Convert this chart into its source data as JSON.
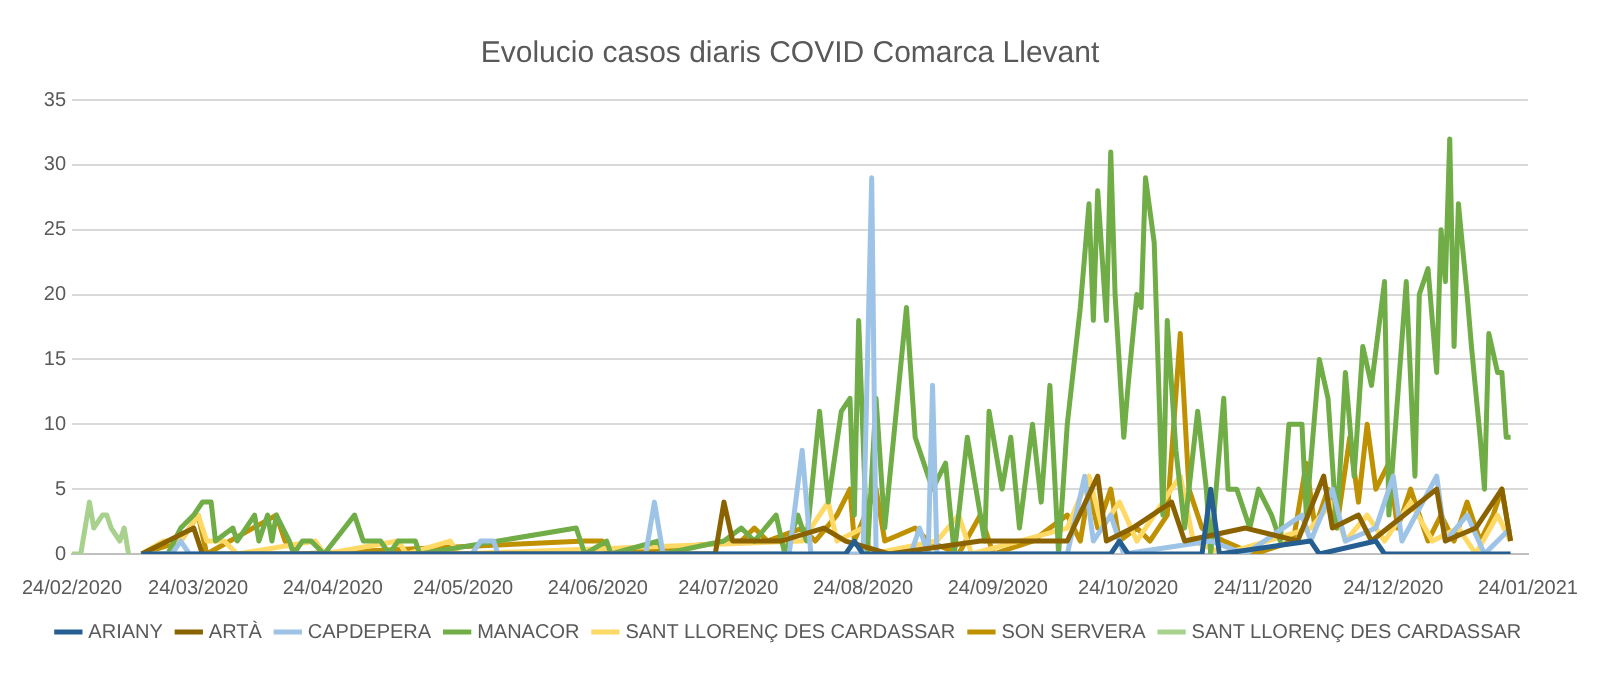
{
  "chart_data": {
    "type": "line",
    "title": "Evolucio casos diaris COVID Comarca Llevant",
    "xlim": [
      "2020-02-24",
      "2021-01-24"
    ],
    "xticks": [
      {
        "value": "2020-02-24",
        "label": "24/02/2020"
      },
      {
        "value": "2020-03-24",
        "label": "24/03/2020"
      },
      {
        "value": "2020-04-24",
        "label": "24/04/2020"
      },
      {
        "value": "2020-05-24",
        "label": "24/05/2020"
      },
      {
        "value": "2020-06-24",
        "label": "24/06/2020"
      },
      {
        "value": "2020-07-24",
        "label": "24/07/2020"
      },
      {
        "value": "2020-08-24",
        "label": "24/08/2020"
      },
      {
        "value": "2020-09-24",
        "label": "24/09/2020"
      },
      {
        "value": "2020-10-24",
        "label": "24/10/2020"
      },
      {
        "value": "2020-11-24",
        "label": "24/11/2020"
      },
      {
        "value": "2020-12-24",
        "label": "24/12/2020"
      },
      {
        "value": "2021-01-24",
        "label": "24/01/2021"
      }
    ],
    "ylim": [
      0,
      35
    ],
    "yticks": [
      0,
      5,
      10,
      15,
      20,
      25,
      30,
      35
    ],
    "grid": "y",
    "legend": "bottom",
    "marker": "none",
    "series": [
      {
        "name": "ARIANY",
        "color": "#255e91",
        "x": [
          "2020-03-11",
          "2020-08-20",
          "2020-08-22",
          "2020-08-24",
          "2020-10-20",
          "2020-10-22",
          "2020-10-24",
          "2020-11-10",
          "2020-11-12",
          "2020-11-14",
          "2020-12-05",
          "2020-12-07",
          "2020-12-20",
          "2020-12-22",
          "2021-01-20"
        ],
        "values": [
          0,
          0,
          1,
          0,
          0,
          1,
          0,
          0,
          5,
          0,
          1,
          0,
          1,
          0,
          0
        ]
      },
      {
        "name": "ARTÀ",
        "color": "#8a6200",
        "x": [
          "2020-03-11",
          "2020-03-23",
          "2020-03-25",
          "2020-07-21",
          "2020-07-23",
          "2020-07-25",
          "2020-08-05",
          "2020-08-15",
          "2020-08-20",
          "2020-08-30",
          "2020-09-20",
          "2020-10-10",
          "2020-10-17",
          "2020-10-19",
          "2020-10-25",
          "2020-11-03",
          "2020-11-06",
          "2020-11-20",
          "2020-12-02",
          "2020-12-08",
          "2020-12-10",
          "2020-12-16",
          "2020-12-19",
          "2021-01-03",
          "2021-01-05",
          "2021-01-12",
          "2021-01-18",
          "2021-01-20"
        ],
        "values": [
          0,
          2,
          0,
          0,
          4,
          1,
          1,
          2,
          1,
          0,
          1,
          1,
          6,
          1,
          2,
          4,
          1,
          2,
          1,
          6,
          2,
          3,
          1,
          5,
          1,
          2,
          5,
          1
        ]
      },
      {
        "name": "CAPDEPERA",
        "color": "#9dc3e6",
        "x": [
          "2020-03-11",
          "2020-03-18",
          "2020-03-20",
          "2020-03-22",
          "2020-05-26",
          "2020-05-28",
          "2020-05-31",
          "2020-06-01",
          "2020-07-05",
          "2020-07-07",
          "2020-07-09",
          "2020-08-07",
          "2020-08-10",
          "2020-08-12",
          "2020-08-24",
          "2020-08-26",
          "2020-08-27",
          "2020-09-04",
          "2020-09-06",
          "2020-09-08",
          "2020-09-09",
          "2020-09-10",
          "2020-10-10",
          "2020-10-14",
          "2020-10-16",
          "2020-10-20",
          "2020-10-23",
          "2020-11-12",
          "2020-11-20",
          "2020-12-03",
          "2020-12-05",
          "2020-12-10",
          "2020-12-13",
          "2020-12-20",
          "2020-12-24",
          "2020-12-26",
          "2021-01-03",
          "2021-01-05",
          "2021-01-10",
          "2021-01-14",
          "2021-01-20"
        ],
        "values": [
          0,
          0,
          1,
          0,
          0,
          1,
          1,
          0,
          0,
          4,
          0,
          0,
          8,
          0,
          0,
          29,
          0,
          0,
          2,
          0,
          13,
          0,
          0,
          6,
          1,
          3,
          0,
          1,
          0,
          3,
          1,
          5,
          1,
          2,
          6,
          1,
          6,
          1,
          3,
          0,
          2
        ]
      },
      {
        "name": "MANACOR",
        "color": "#70ad47",
        "x": [
          "2020-03-11",
          "2020-03-17",
          "2020-03-20",
          "2020-03-23",
          "2020-03-25",
          "2020-03-27",
          "2020-03-28",
          "2020-04-01",
          "2020-04-02",
          "2020-04-06",
          "2020-04-07",
          "2020-04-09",
          "2020-04-10",
          "2020-04-11",
          "2020-04-14",
          "2020-04-15",
          "2020-04-17",
          "2020-04-19",
          "2020-04-22",
          "2020-04-29",
          "2020-05-01",
          "2020-05-05",
          "2020-05-07",
          "2020-05-09",
          "2020-05-13",
          "2020-05-14",
          "2020-06-19",
          "2020-06-21",
          "2020-06-26",
          "2020-06-27",
          "2020-07-08",
          "2020-07-09",
          "2020-07-23",
          "2020-07-27",
          "2020-07-30",
          "2020-08-04",
          "2020-08-06",
          "2020-08-09",
          "2020-08-11",
          "2020-08-14",
          "2020-08-16",
          "2020-08-19",
          "2020-08-21",
          "2020-08-22",
          "2020-08-23",
          "2020-08-25",
          "2020-08-27",
          "2020-08-29",
          "2020-09-03",
          "2020-09-05",
          "2020-09-09",
          "2020-09-12",
          "2020-09-14",
          "2020-09-17",
          "2020-09-21",
          "2020-09-22",
          "2020-09-25",
          "2020-09-27",
          "2020-09-29",
          "2020-10-02",
          "2020-10-04",
          "2020-10-06",
          "2020-10-08",
          "2020-10-10",
          "2020-10-13",
          "2020-10-15",
          "2020-10-16",
          "2020-10-17",
          "2020-10-19",
          "2020-10-20",
          "2020-10-21",
          "2020-10-23",
          "2020-10-24",
          "2020-10-26",
          "2020-10-27",
          "2020-10-28",
          "2020-10-30",
          "2020-11-01",
          "2020-11-02",
          "2020-11-04",
          "2020-11-06",
          "2020-11-09",
          "2020-11-11",
          "2020-11-12",
          "2020-11-15",
          "2020-11-16",
          "2020-11-18",
          "2020-11-21",
          "2020-11-23",
          "2020-11-26",
          "2020-11-28",
          "2020-11-30",
          "2020-12-03",
          "2020-12-04",
          "2020-12-07",
          "2020-12-09",
          "2020-12-11",
          "2020-12-13",
          "2020-12-15",
          "2020-12-17",
          "2020-12-19",
          "2020-12-22",
          "2020-12-23",
          "2020-12-27",
          "2020-12-29",
          "2020-12-30",
          "2021-01-01",
          "2021-01-03",
          "2021-01-04",
          "2021-01-05",
          "2021-01-06",
          "2021-01-07",
          "2021-01-08",
          "2021-01-10",
          "2021-01-11",
          "2021-01-13",
          "2021-01-14",
          "2021-01-15",
          "2021-01-17",
          "2021-01-18",
          "2021-01-19",
          "2021-01-20"
        ],
        "values": [
          0,
          0,
          2,
          3,
          4,
          4,
          1,
          2,
          1,
          3,
          1,
          3,
          1,
          3,
          1,
          0,
          1,
          1,
          0,
          3,
          1,
          1,
          0,
          1,
          1,
          0,
          2,
          0,
          1,
          0,
          1,
          0,
          1,
          2,
          1,
          3,
          0,
          3,
          1,
          11,
          4,
          11,
          12,
          3,
          18,
          0,
          12,
          2,
          19,
          9,
          5,
          7,
          0,
          9,
          1,
          11,
          5,
          9,
          2,
          10,
          4,
          13,
          0,
          10,
          19,
          27,
          18,
          28,
          18,
          31,
          20,
          9,
          13,
          20,
          19,
          29,
          24,
          3,
          18,
          8,
          2,
          11,
          5,
          0,
          12,
          5,
          5,
          2,
          5,
          3,
          1,
          10,
          10,
          3,
          15,
          12,
          2,
          14,
          6,
          16,
          13,
          21,
          3,
          21,
          6,
          20,
          22,
          14,
          25,
          21,
          32,
          16,
          27,
          20,
          16,
          9,
          5,
          17,
          14,
          14,
          9,
          9
        ]
      },
      {
        "name": "SANT LLORENÇ DES CARDASSAR",
        "color": "#ffd966",
        "x": [
          "2020-03-11",
          "2020-03-16",
          "2020-03-20",
          "2020-03-24",
          "2020-03-26",
          "2020-03-30",
          "2020-04-02",
          "2020-04-20",
          "2020-04-22",
          "2020-05-09",
          "2020-05-11",
          "2020-05-21",
          "2020-05-23",
          "2020-08-10",
          "2020-08-16",
          "2020-08-18",
          "2020-08-24",
          "2020-08-26",
          "2020-09-10",
          "2020-09-15",
          "2020-09-18",
          "2020-10-10",
          "2020-10-15",
          "2020-10-18",
          "2020-10-22",
          "2020-10-26",
          "2020-11-05",
          "2020-11-08",
          "2020-11-15",
          "2020-11-25",
          "2020-12-05",
          "2020-12-10",
          "2020-12-13",
          "2020-12-18",
          "2020-12-22",
          "2020-12-28",
          "2021-01-02",
          "2021-01-08",
          "2021-01-12",
          "2021-01-17",
          "2021-01-20"
        ],
        "values": [
          0,
          1,
          1,
          3,
          1,
          1,
          0,
          1,
          0,
          1,
          0,
          1,
          0,
          1,
          4,
          1,
          2,
          0,
          1,
          3,
          0,
          2,
          6,
          2,
          4,
          1,
          6,
          1,
          0,
          1,
          2,
          4,
          1,
          3,
          1,
          4,
          1,
          2,
          0,
          3,
          1
        ]
      },
      {
        "name": "SON SERVERA",
        "color": "#bf9000",
        "x": [
          "2020-03-11",
          "2020-03-20",
          "2020-03-24",
          "2020-03-26",
          "2020-04-11",
          "2020-04-13",
          "2020-04-16",
          "2020-06-21",
          "2020-06-25",
          "2020-06-26",
          "2020-07-27",
          "2020-07-30",
          "2020-08-02",
          "2020-08-10",
          "2020-08-13",
          "2020-08-18",
          "2020-08-21",
          "2020-08-22",
          "2020-08-27",
          "2020-08-29",
          "2020-09-05",
          "2020-09-08",
          "2020-09-15",
          "2020-09-20",
          "2020-09-23",
          "2020-10-02",
          "2020-10-10",
          "2020-10-13",
          "2020-10-15",
          "2020-10-17",
          "2020-10-20",
          "2020-10-22",
          "2020-10-26",
          "2020-10-29",
          "2020-11-02",
          "2020-11-05",
          "2020-11-07",
          "2020-11-10",
          "2020-11-15",
          "2020-11-22",
          "2020-12-01",
          "2020-12-04",
          "2020-12-06",
          "2020-12-09",
          "2020-12-11",
          "2020-12-14",
          "2020-12-16",
          "2020-12-18",
          "2020-12-20",
          "2020-12-23",
          "2020-12-25",
          "2020-12-28",
          "2021-01-01",
          "2021-01-04",
          "2021-01-07",
          "2021-01-10",
          "2021-01-13",
          "2021-01-16",
          "2021-01-18",
          "2021-01-20"
        ],
        "values": [
          0,
          1,
          3,
          0,
          3,
          1,
          0,
          1,
          1,
          0,
          1,
          2,
          1,
          2,
          1,
          3,
          5,
          1,
          5,
          1,
          2,
          1,
          0,
          3,
          0,
          1,
          3,
          1,
          5,
          2,
          5,
          1,
          2,
          1,
          3,
          17,
          5,
          2,
          1,
          0,
          1,
          7,
          2,
          5,
          2,
          9,
          4,
          10,
          5,
          7,
          2,
          5,
          1,
          3,
          1,
          4,
          1,
          3,
          5,
          1
        ]
      },
      {
        "name": "SANT LLORENÇ DES CARDASSAR",
        "color": "#a9d18e",
        "x": [
          "2020-02-24",
          "2020-02-26",
          "2020-02-28",
          "2020-02-29",
          "2020-03-02",
          "2020-03-03",
          "2020-03-04",
          "2020-03-06",
          "2020-03-07",
          "2020-03-08"
        ],
        "values": [
          0,
          0,
          4,
          2,
          3,
          3,
          2,
          1,
          2,
          0
        ]
      }
    ]
  }
}
